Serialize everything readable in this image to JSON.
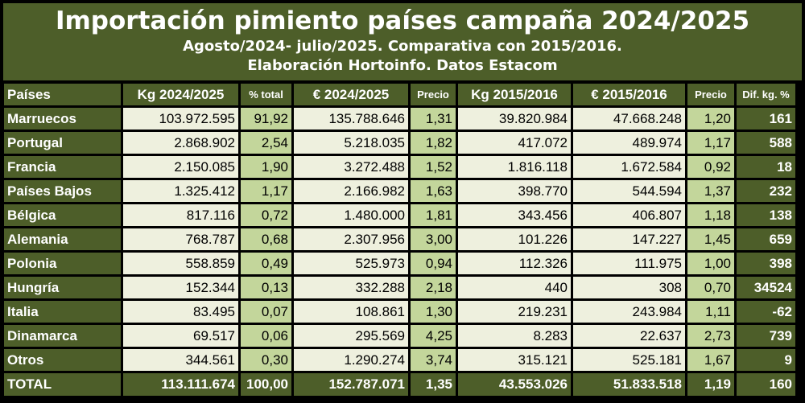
{
  "title": "Importación pimiento países campaña 2024/2025",
  "subtitle1": "Agosto/2024- julio/2025. Comparativa con 2015/2016.",
  "subtitle2": "Elaboración Hortoinfo. Datos Estacom",
  "colors": {
    "dark_green": "#4d5e29",
    "light_cell": "#eef0de",
    "medium_green": "#c3d69b"
  },
  "headers": [
    "Países",
    "Kg 2024/2025",
    "% total",
    "€ 2024/2025",
    "Precio",
    "Kg 2015/2016",
    "€ 2015/2016",
    "Precio",
    "Dif. kg. %"
  ],
  "rows": [
    [
      "Marruecos",
      "103.972.595",
      "91,92",
      "135.788.646",
      "1,31",
      "39.820.984",
      "47.668.248",
      "1,20",
      "161"
    ],
    [
      "Portugal",
      "2.868.902",
      "2,54",
      "5.218.035",
      "1,82",
      "417.072",
      "489.974",
      "1,17",
      "588"
    ],
    [
      "Francia",
      "2.150.085",
      "1,90",
      "3.272.488",
      "1,52",
      "1.816.118",
      "1.672.584",
      "0,92",
      "18"
    ],
    [
      "Países Bajos",
      "1.325.412",
      "1,17",
      "2.166.982",
      "1,63",
      "398.770",
      "544.594",
      "1,37",
      "232"
    ],
    [
      "Bélgica",
      "817.116",
      "0,72",
      "1.480.000",
      "1,81",
      "343.456",
      "406.807",
      "1,18",
      "138"
    ],
    [
      "Alemania",
      "768.787",
      "0,68",
      "2.307.956",
      "3,00",
      "101.226",
      "147.227",
      "1,45",
      "659"
    ],
    [
      "Polonia",
      "558.859",
      "0,49",
      "525.973",
      "0,94",
      "112.326",
      "111.975",
      "1,00",
      "398"
    ],
    [
      "Hungría",
      "152.344",
      "0,13",
      "332.288",
      "2,18",
      "440",
      "308",
      "0,70",
      "34524"
    ],
    [
      "Italia",
      "83.495",
      "0,07",
      "108.861",
      "1,30",
      "219.231",
      "243.984",
      "1,11",
      "-62"
    ],
    [
      "Dinamarca",
      "69.517",
      "0,06",
      "295.569",
      "4,25",
      "8.283",
      "22.637",
      "2,73",
      "739"
    ],
    [
      "Otros",
      "344.561",
      "0,30",
      "1.290.274",
      "3,74",
      "315.121",
      "525.181",
      "1,67",
      "9"
    ]
  ],
  "total": [
    "TOTAL",
    "113.111.674",
    "100,00",
    "152.787.071",
    "1,35",
    "43.553.026",
    "51.833.518",
    "1,19",
    "160"
  ]
}
